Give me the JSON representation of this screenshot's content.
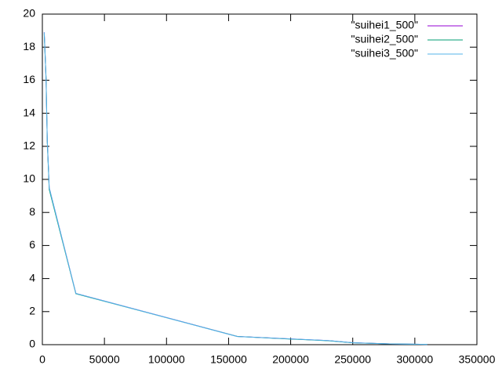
{
  "chart_data": {
    "type": "line",
    "x": [
      1500,
      2000,
      3000,
      3500,
      4000,
      5000,
      5500,
      27000,
      157000,
      200000,
      230000,
      250000,
      280000,
      310000
    ],
    "series": [
      {
        "name": "\"suihei1_500\"",
        "color": "#9400d3",
        "values": [
          18.9,
          18.0,
          16.0,
          14.0,
          12.3,
          10.5,
          9.5,
          3.1,
          0.5,
          0.35,
          0.25,
          0.12,
          0.05,
          0.02
        ]
      },
      {
        "name": "\"suihei2_500\"",
        "color": "#009e73",
        "values": [
          18.8,
          17.9,
          16.1,
          14.1,
          12.2,
          10.4,
          9.4,
          3.08,
          0.5,
          0.34,
          0.24,
          0.11,
          0.05,
          0.02
        ]
      },
      {
        "name": "\"suihei3_500\"",
        "color": "#56b4e9",
        "values": [
          18.9,
          18.0,
          16.0,
          14.0,
          12.3,
          10.5,
          9.5,
          3.1,
          0.49,
          0.35,
          0.25,
          0.12,
          0.05,
          0.02
        ]
      }
    ],
    "xlim": [
      0,
      350000
    ],
    "xticks": [
      0,
      50000,
      100000,
      150000,
      200000,
      250000,
      300000,
      350000
    ],
    "ylim": [
      0,
      20
    ],
    "yticks": [
      0,
      2,
      4,
      6,
      8,
      10,
      12,
      14,
      16,
      18,
      20
    ],
    "legend": "top-right",
    "grid": false
  }
}
